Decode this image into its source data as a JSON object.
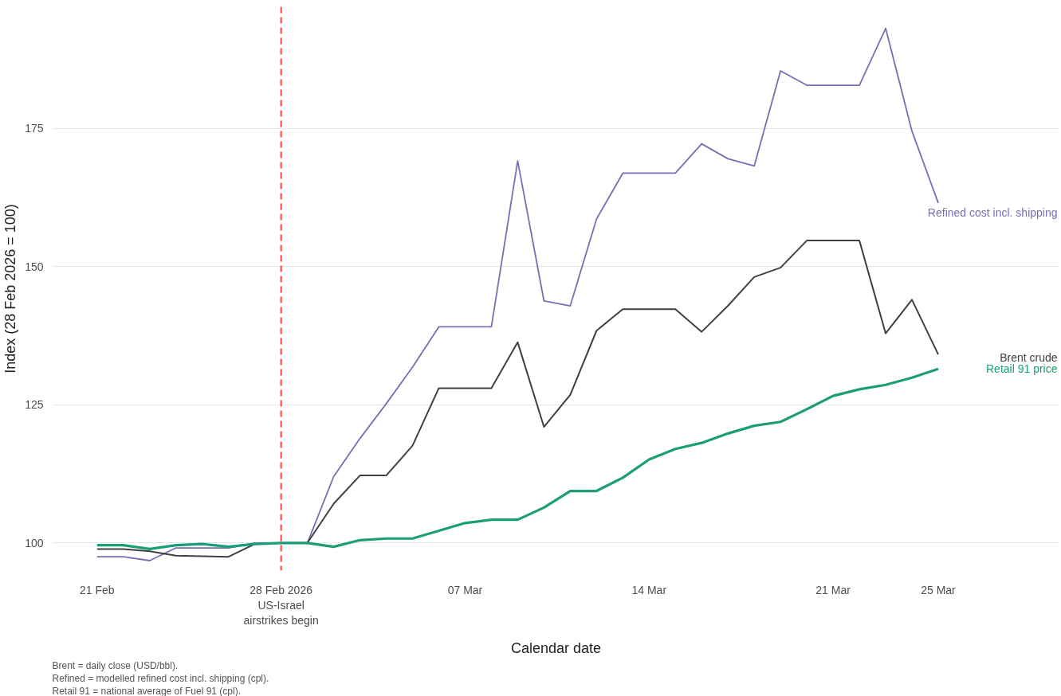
{
  "chart_data": {
    "type": "line",
    "xlabel": "Calendar date",
    "ylabel": "Index (28 Feb 2026 = 100)",
    "x": [
      "2026-02-21",
      "2026-02-22",
      "2026-02-23",
      "2026-02-24",
      "2026-02-25",
      "2026-02-26",
      "2026-02-27",
      "2026-02-28",
      "2026-03-01",
      "2026-03-02",
      "2026-03-03",
      "2026-03-04",
      "2026-03-05",
      "2026-03-06",
      "2026-03-07",
      "2026-03-08",
      "2026-03-09",
      "2026-03-10",
      "2026-03-11",
      "2026-03-12",
      "2026-03-13",
      "2026-03-14",
      "2026-03-15",
      "2026-03-16",
      "2026-03-17",
      "2026-03-18",
      "2026-03-19",
      "2026-03-20",
      "2026-03-21",
      "2026-03-22",
      "2026-03-23",
      "2026-03-24",
      "2026-03-25"
    ],
    "series": [
      {
        "name": "Refined cost incl. shipping",
        "color": "#7570b3",
        "values": [
          97.5,
          97.5,
          96.8,
          99.1,
          99.1,
          99.1,
          100,
          100,
          100,
          112,
          118.9,
          125.2,
          131.8,
          139.1,
          139.1,
          139.1,
          169.1,
          143.8,
          142.9,
          158.6,
          166.9,
          166.9,
          166.9,
          172.2,
          169.5,
          168.2,
          185.4,
          182.8,
          182.8,
          182.8,
          193.1,
          174.5,
          161.5
        ]
      },
      {
        "name": "Brent crude",
        "color": "#404040",
        "values": [
          98.9,
          98.9,
          98.5,
          97.7,
          97.6,
          97.5,
          99.8,
          100,
          100,
          107.1,
          112.2,
          112.2,
          117.6,
          128,
          128,
          128,
          136.3,
          121,
          126.8,
          138.4,
          142.3,
          142.3,
          142.3,
          138.2,
          142.9,
          148.1,
          149.8,
          154.7,
          154.7,
          154.7,
          137.9,
          144,
          134.1
        ]
      },
      {
        "name": "Retail 91 price",
        "color": "#1b9e77",
        "values": [
          99.6,
          99.6,
          98.9,
          99.6,
          99.8,
          99.3,
          99.8,
          100,
          100,
          99.3,
          100.5,
          100.8,
          100.8,
          102.2,
          103.6,
          104.2,
          104.2,
          106.4,
          109.4,
          109.4,
          111.8,
          115.1,
          117,
          118.1,
          119.8,
          121.2,
          121.9,
          124.2,
          126.6,
          127.8,
          128.6,
          129.9,
          131.5
        ]
      }
    ],
    "xlim": [
      "2026-02-19T07:00",
      "2026-03-29T15:00"
    ],
    "xticks": [
      {
        "value": "2026-02-21",
        "label": "21 Feb"
      },
      {
        "value": "2026-02-28",
        "label": "28 Feb 2026\nUS-Israel\nairstrikes begin"
      },
      {
        "value": "2026-03-07",
        "label": "07 Mar"
      },
      {
        "value": "2026-03-14",
        "label": "14 Mar"
      },
      {
        "value": "2026-03-21",
        "label": "21 Mar"
      },
      {
        "value": "2026-03-25",
        "label": "25 Mar"
      }
    ],
    "ylim": [
      95,
      197
    ],
    "yticks": [
      100,
      125,
      150,
      175
    ],
    "grid": "y",
    "line_style": "solid",
    "ref_lines": [
      {
        "axis": "x",
        "value": "2026-02-28",
        "color": "#ff4040",
        "line_style": "dashed"
      }
    ],
    "annotations": [
      "Brent = daily close (USD/bbl).",
      "Refined = modelled refined cost incl. shipping (cpl).",
      "Retail 91 = national average of Fuel 91 (cpl)."
    ]
  }
}
